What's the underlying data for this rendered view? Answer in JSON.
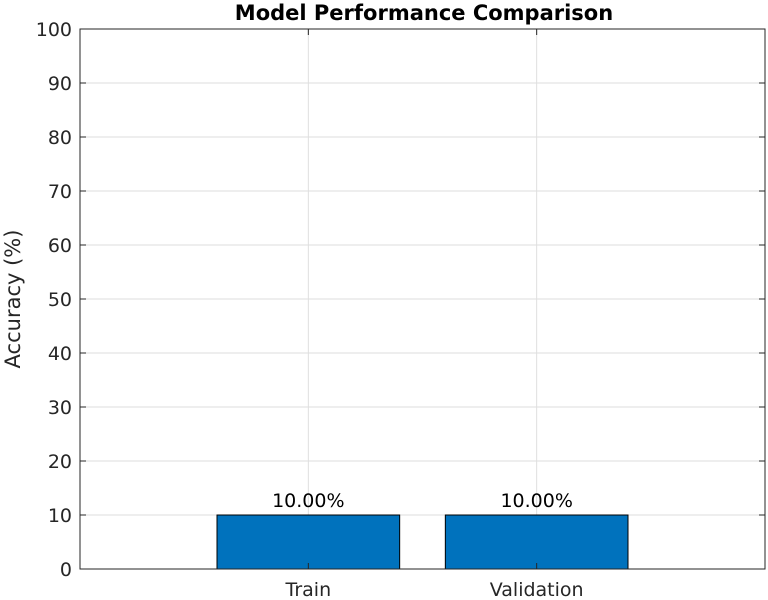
{
  "chart_data": {
    "type": "bar",
    "title": "Model Performance Comparison",
    "xlabel": "",
    "ylabel": "Accuracy (%)",
    "categories": [
      "Train",
      "Validation"
    ],
    "values": [
      10,
      10
    ],
    "data_labels": [
      "10.00%",
      "10.00%"
    ],
    "ylim": [
      0,
      100
    ],
    "yticks": [
      0,
      10,
      20,
      30,
      40,
      50,
      60,
      70,
      80,
      90,
      100
    ],
    "xlim": [
      0,
      3
    ],
    "grid": true,
    "bar_color": "#0072BD"
  }
}
